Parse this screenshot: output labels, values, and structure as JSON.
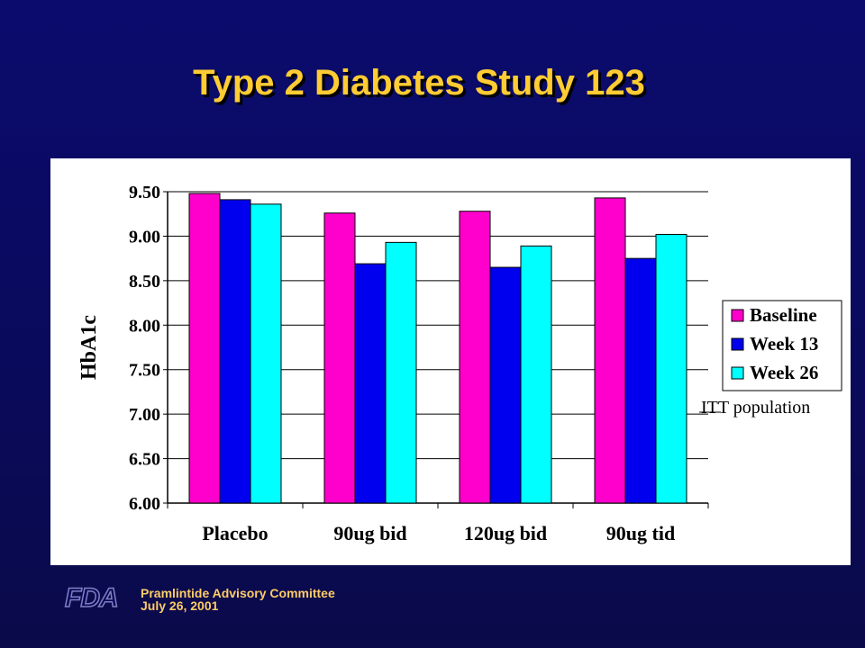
{
  "slide": {
    "title": "Type 2 Diabetes Study 123",
    "footer_line1": "Pramlintide Advisory Committee",
    "footer_line2": "July 26, 2001",
    "logo_text": "FDA"
  },
  "chart_data": {
    "type": "bar",
    "title": "",
    "xlabel": "",
    "ylabel": "HbA1c",
    "ylim": [
      6.0,
      9.5
    ],
    "yticks": [
      "6.00",
      "6.50",
      "7.00",
      "7.50",
      "8.00",
      "8.50",
      "9.00",
      "9.50"
    ],
    "categories": [
      "Placebo",
      "90ug bid",
      "120ug bid",
      "90ug tid"
    ],
    "series": [
      {
        "name": "Baseline",
        "color": "#ff00cc",
        "values": [
          9.48,
          9.26,
          9.28,
          9.43
        ]
      },
      {
        "name": "Week 13",
        "color": "#0000ee",
        "values": [
          9.41,
          8.69,
          8.65,
          8.75
        ]
      },
      {
        "name": "Week 26",
        "color": "#00ffff",
        "values": [
          9.36,
          8.93,
          8.89,
          9.02
        ]
      }
    ],
    "annotation": "ITT population",
    "legend_position": "right",
    "grid": true
  }
}
